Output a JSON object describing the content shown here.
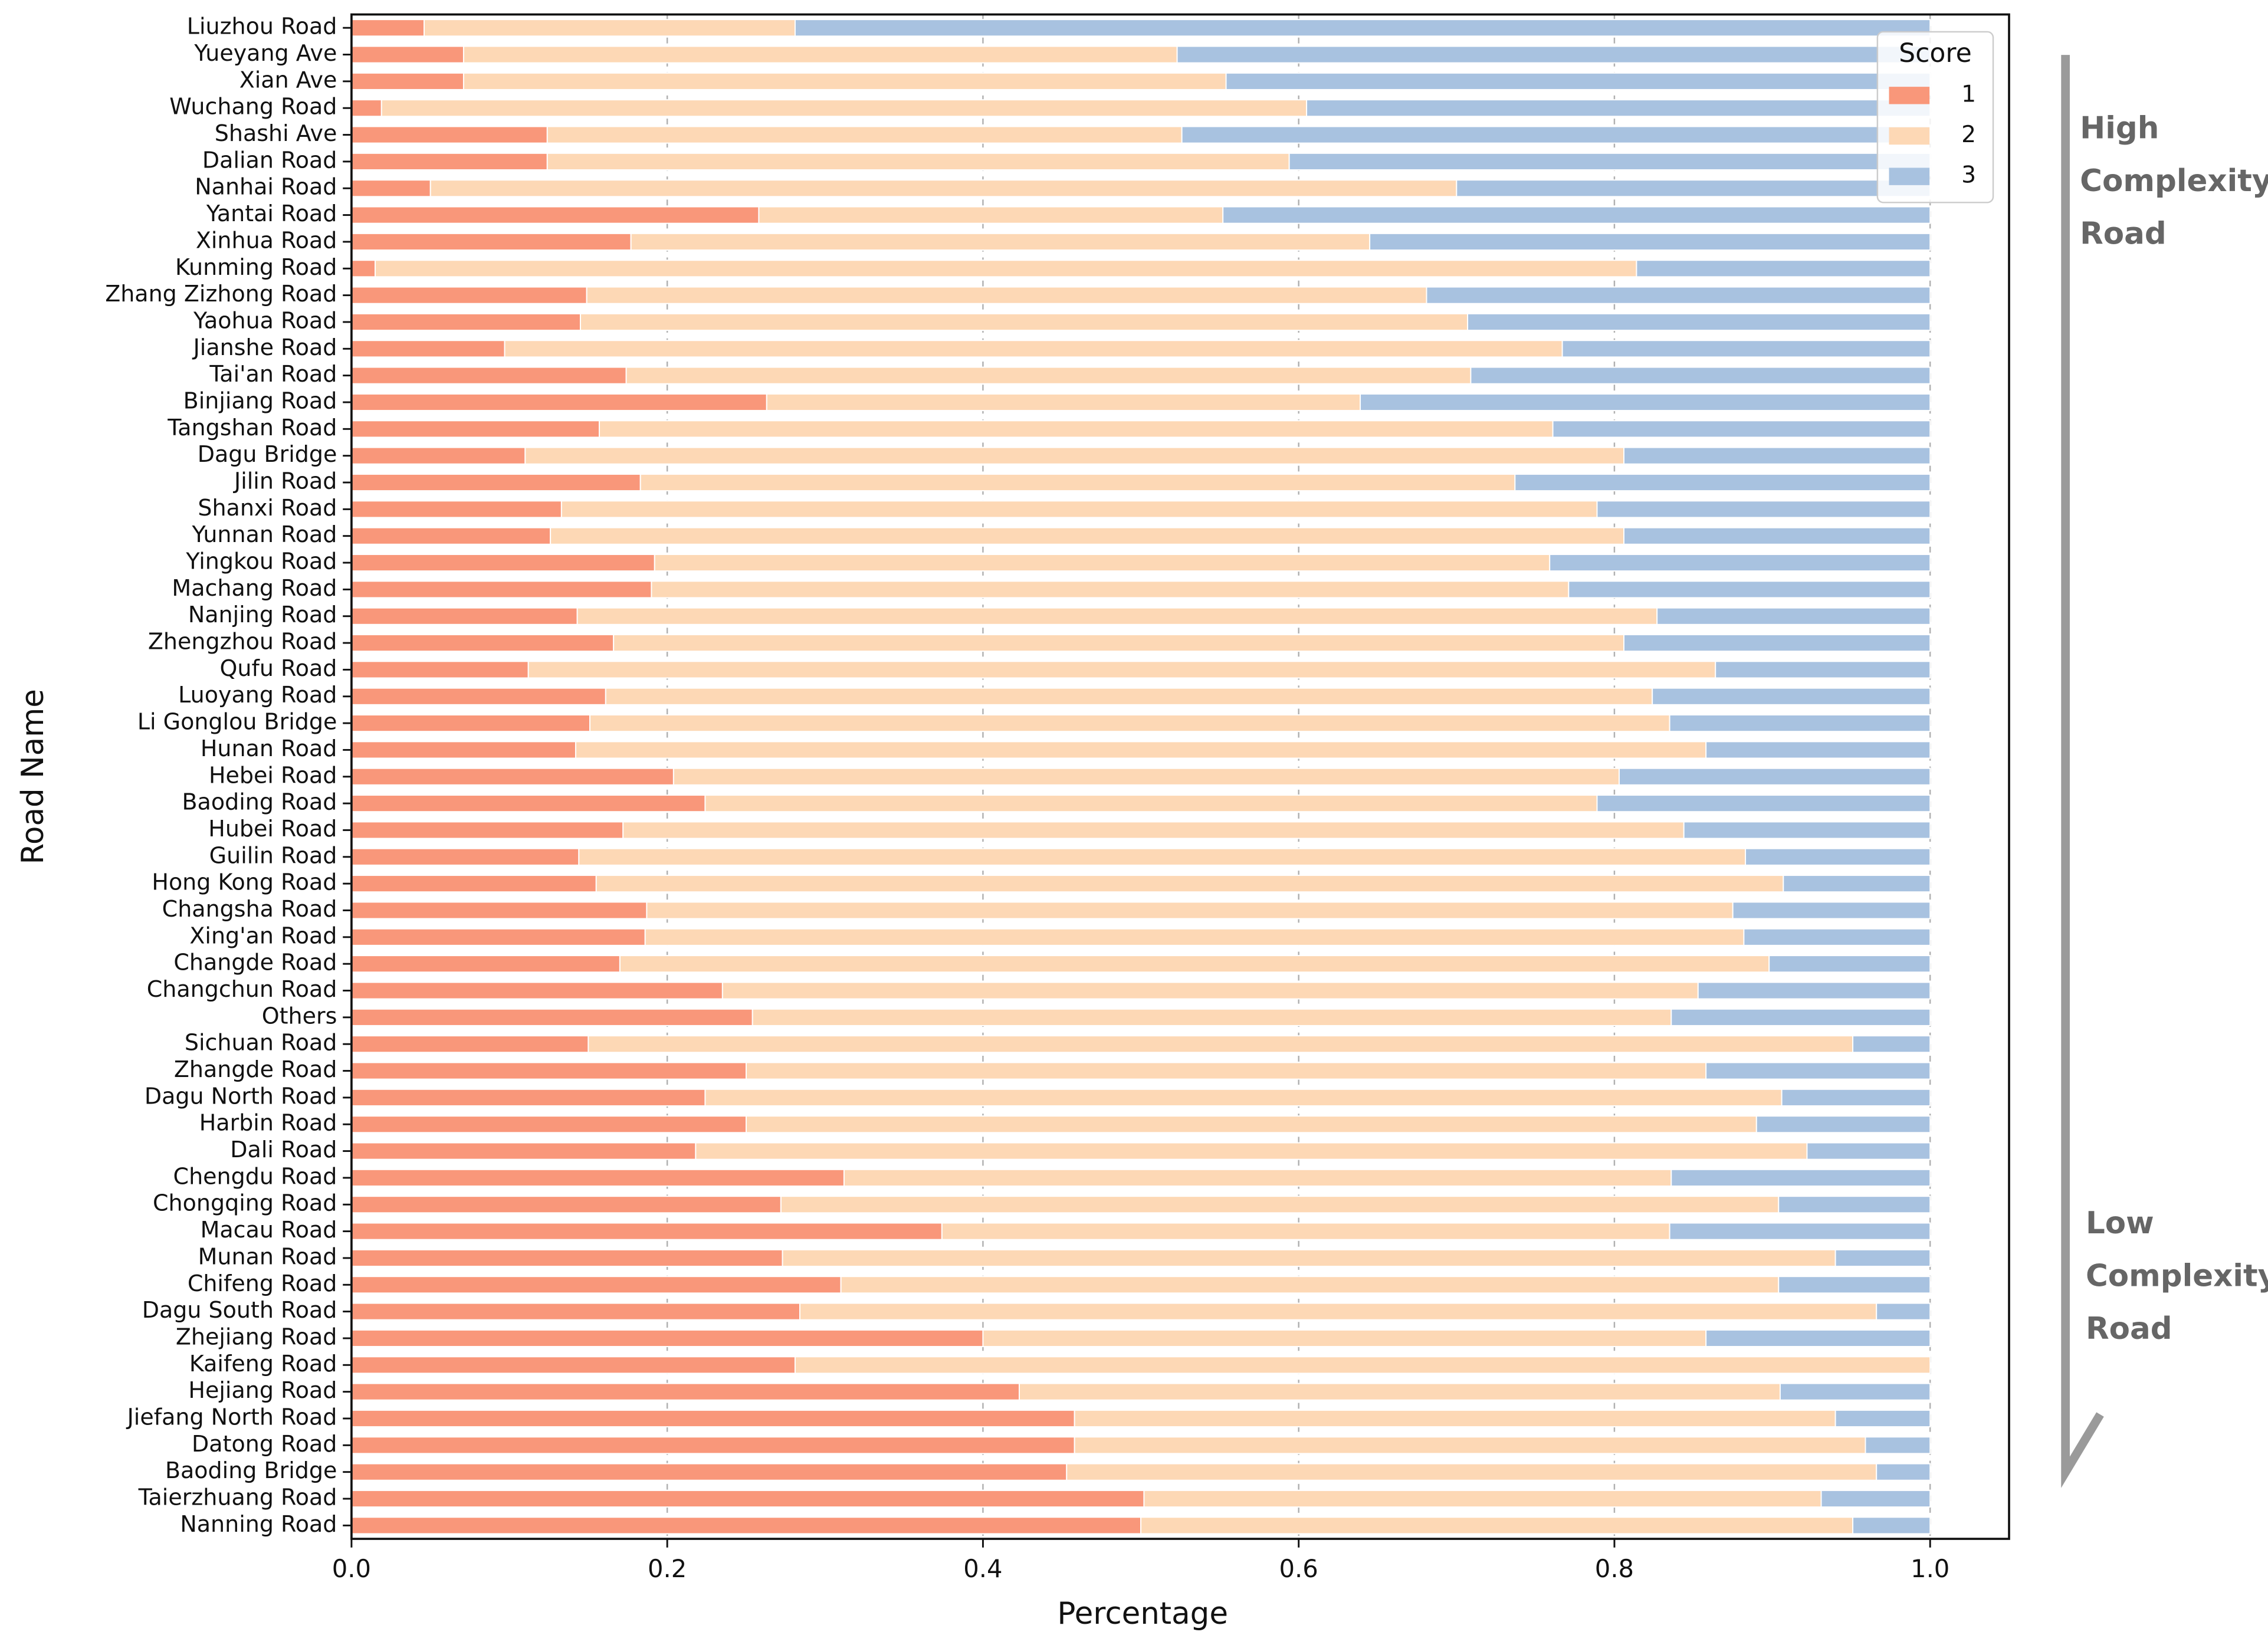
{
  "chart_data": {
    "type": "stacked-barh",
    "xlabel": "Percentage",
    "ylabel": "Road Name",
    "xlim": [
      0,
      1.05
    ],
    "xticks": [
      {
        "value": 0,
        "label": "0.0"
      },
      0.2,
      0.4,
      0.6,
      0.8,
      {
        "value": 1,
        "label": "1.0"
      }
    ],
    "grid": true,
    "legend": {
      "title": "Score",
      "loc": "upper right"
    },
    "categories": [
      "Liuzhou Road",
      "Yueyang Ave",
      "Xian Ave",
      "Wuchang Road",
      "Shashi Ave",
      "Dalian Road",
      "Nanhai Road",
      "Yantai Road",
      "Xinhua Road",
      "Kunming Road",
      "Zhang Zizhong Road",
      "Yaohua Road",
      "Jianshe Road",
      "Tai'an Road",
      "Binjiang Road",
      "Tangshan Road",
      "Dagu Bridge",
      "Jilin Road",
      "Shanxi Road",
      "Yunnan Road",
      "Yingkou Road",
      "Machang Road",
      "Nanjing Road",
      "Zhengzhou Road",
      "Qufu Road",
      "Luoyang Road",
      "Li Gonglou Bridge",
      "Hunan Road",
      "Hebei Road",
      "Baoding Road",
      "Hubei Road",
      "Guilin Road",
      "Hong Kong Road",
      "Changsha Road",
      "Xing'an Road",
      "Changde Road",
      "Changchun Road",
      "Others",
      "Sichuan Road",
      "Zhangde Road",
      "Dagu North Road",
      "Harbin Road",
      "Dali Road",
      "Chengdu Road",
      "Chongqing Road",
      "Macau Road",
      "Munan Road",
      "Chifeng Road",
      "Dagu South Road",
      "Zhejiang Road",
      "Kaifeng Road",
      "Hejiang Road",
      "Jiefang North Road",
      "Datong Road",
      "Baoding Bridge",
      "Taierzhuang Road",
      "Nanning Road"
    ],
    "series": [
      {
        "name": "1",
        "color": "#f9977a",
        "values": [
          0.046,
          0.071,
          0.071,
          0.019,
          0.124,
          0.124,
          0.05,
          0.258,
          0.177,
          0.015,
          0.149,
          0.145,
          0.097,
          0.174,
          0.263,
          0.157,
          0.11,
          0.183,
          0.133,
          0.126,
          0.192,
          0.19,
          0.143,
          0.166,
          0.112,
          0.161,
          0.151,
          0.142,
          0.204,
          0.224,
          0.172,
          0.144,
          0.155,
          0.187,
          0.186,
          0.17,
          0.235,
          0.254,
          0.15,
          0.25,
          0.224,
          0.25,
          0.218,
          0.312,
          0.272,
          0.374,
          0.273,
          0.31,
          0.284,
          0.4,
          0.281,
          0.423,
          0.458,
          0.458,
          0.453,
          0.502,
          0.5
        ]
      },
      {
        "name": "2",
        "color": "#fdd8b5",
        "values": [
          0.235,
          0.452,
          0.483,
          0.586,
          0.402,
          0.47,
          0.65,
          0.294,
          0.468,
          0.799,
          0.532,
          0.562,
          0.67,
          0.535,
          0.376,
          0.604,
          0.696,
          0.554,
          0.656,
          0.68,
          0.567,
          0.581,
          0.684,
          0.64,
          0.752,
          0.663,
          0.684,
          0.716,
          0.599,
          0.565,
          0.672,
          0.739,
          0.752,
          0.688,
          0.696,
          0.728,
          0.618,
          0.582,
          0.801,
          0.608,
          0.682,
          0.64,
          0.704,
          0.524,
          0.632,
          0.461,
          0.667,
          0.594,
          0.682,
          0.458,
          0.719,
          0.482,
          0.482,
          0.501,
          0.513,
          0.429,
          0.451
        ]
      },
      {
        "name": "3",
        "color": "#a8c2e0",
        "values": [
          0.719,
          0.477,
          0.446,
          0.395,
          0.474,
          0.406,
          0.3,
          0.448,
          0.355,
          0.186,
          0.319,
          0.293,
          0.233,
          0.291,
          0.361,
          0.239,
          0.194,
          0.263,
          0.211,
          0.194,
          0.241,
          0.229,
          0.173,
          0.194,
          0.136,
          0.176,
          0.165,
          0.142,
          0.197,
          0.211,
          0.156,
          0.117,
          0.093,
          0.125,
          0.118,
          0.102,
          0.147,
          0.164,
          0.049,
          0.142,
          0.094,
          0.11,
          0.078,
          0.164,
          0.096,
          0.165,
          0.06,
          0.096,
          0.034,
          0.142,
          0,
          0.095,
          0.06,
          0.041,
          0.034,
          0.069,
          0.049
        ]
      }
    ],
    "annotations": [
      [
        "High",
        "Complexity",
        "Road"
      ],
      [
        "Low",
        "Complexity",
        "Road"
      ]
    ]
  }
}
